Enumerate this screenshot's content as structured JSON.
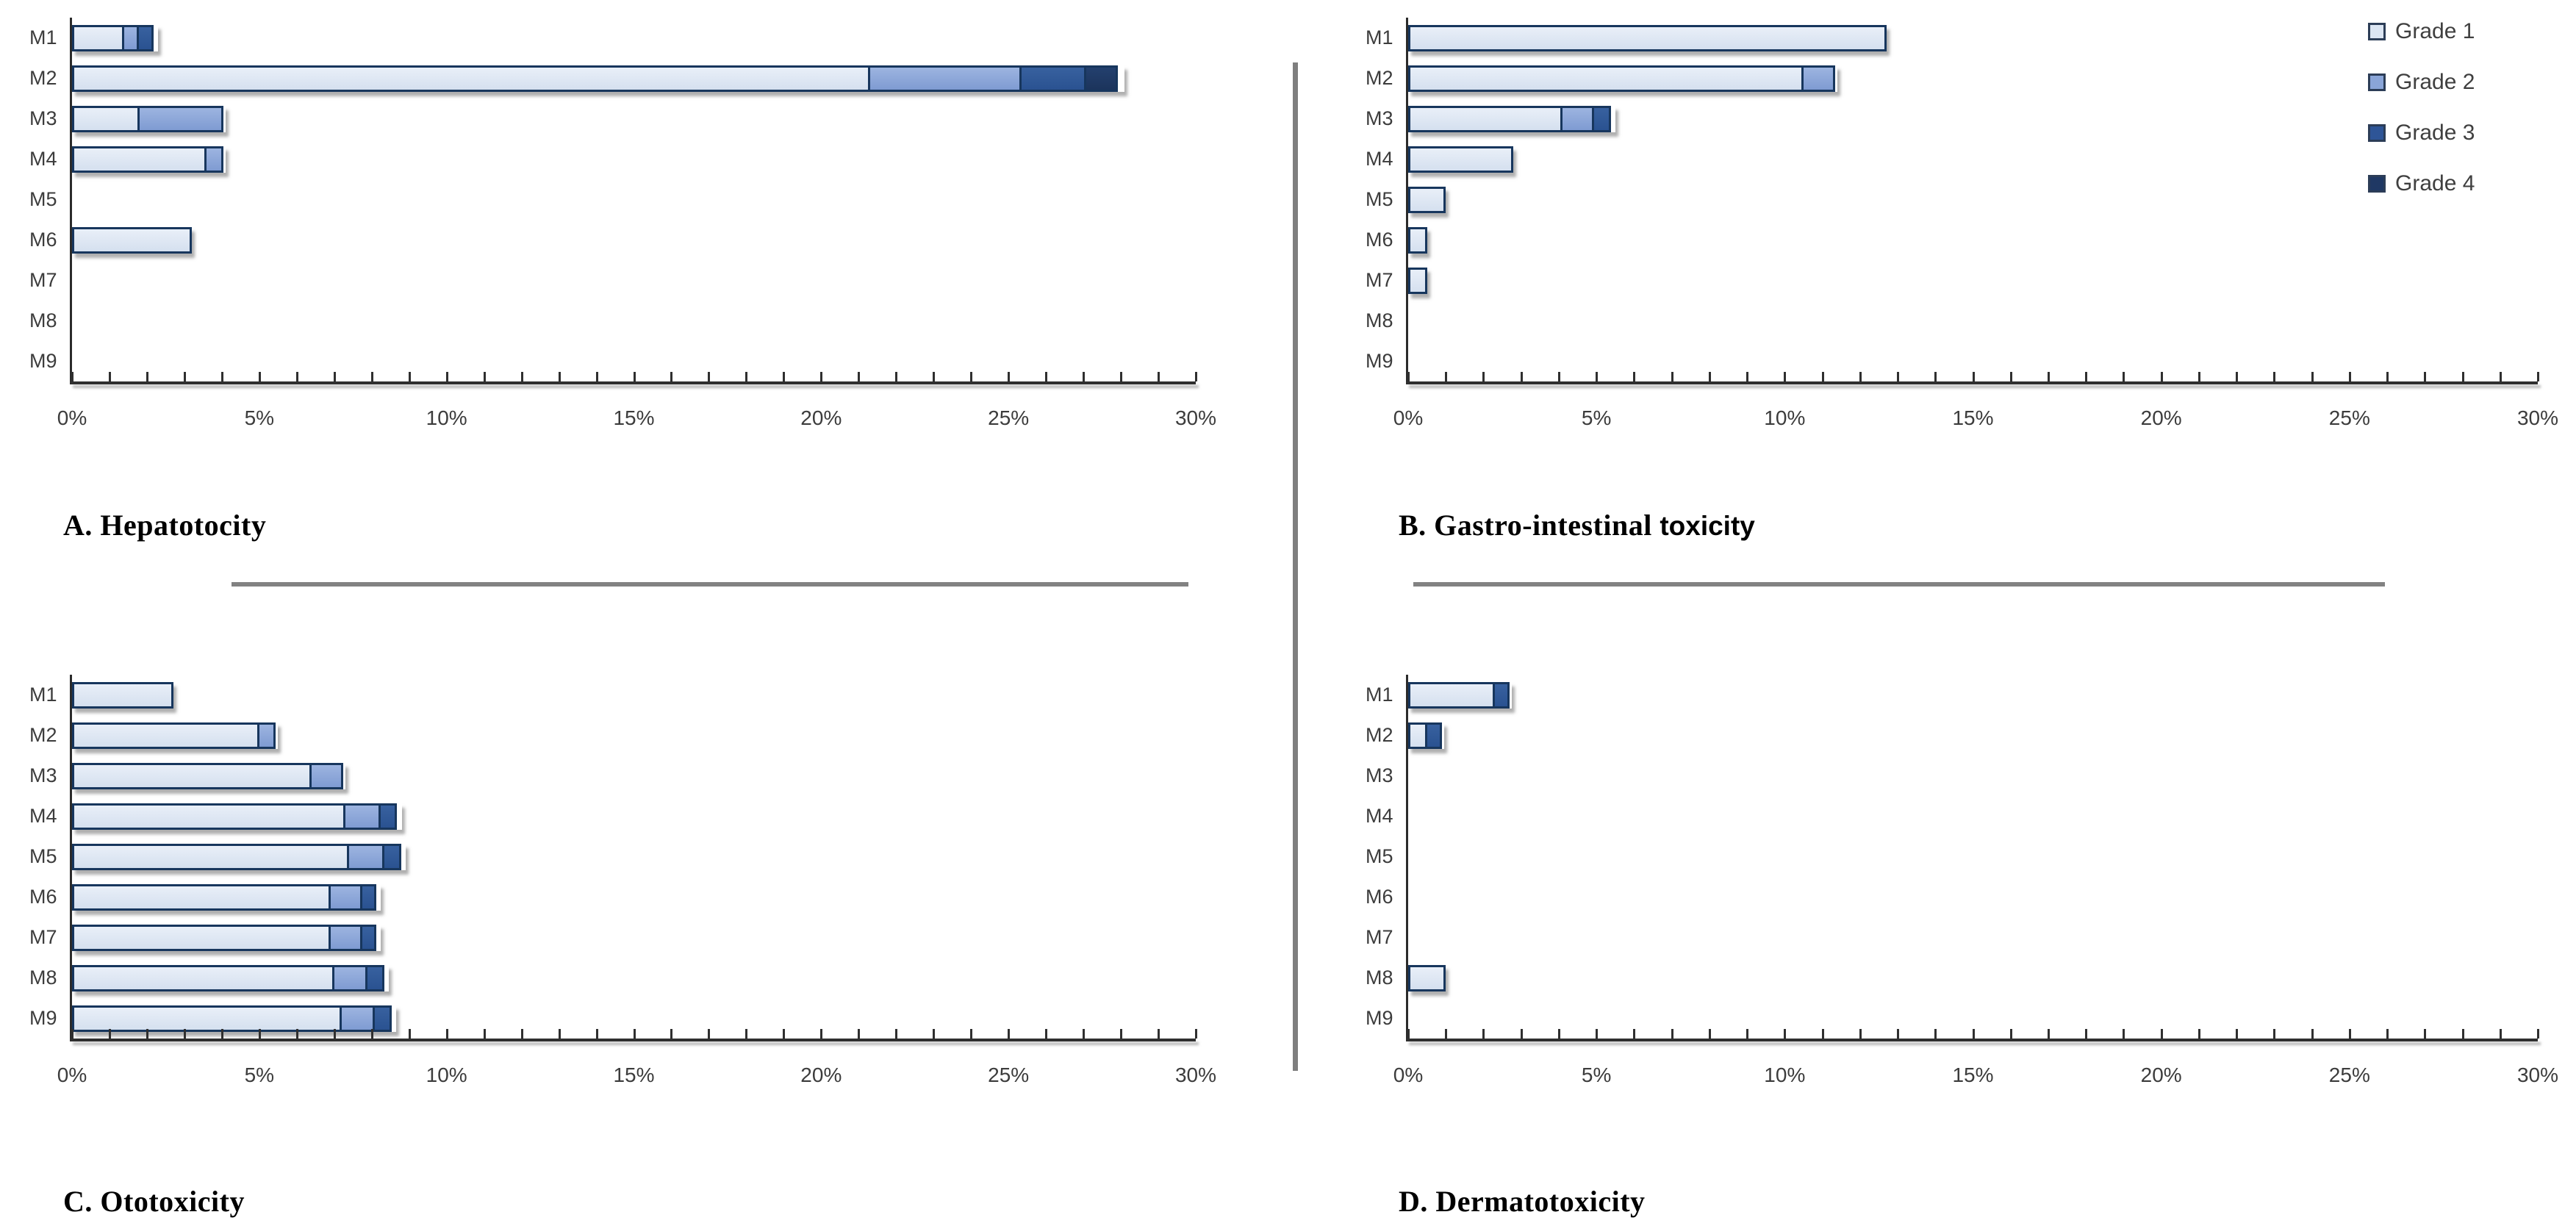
{
  "figure": {
    "background": "#ffffff",
    "divider_color": "#7f7f7f",
    "separator_color": "#828282",
    "axis_color": "#2f2f2f",
    "bar_border_color": "#17365d",
    "text_color": "#3c3c3c"
  },
  "axis": {
    "min": 0,
    "max": 30,
    "minor_step": 1,
    "major_step": 5,
    "tick_labels": [
      "0%",
      "5%",
      "10%",
      "15%",
      "20%",
      "25%",
      "30%"
    ]
  },
  "legend": {
    "position": "top-right",
    "items": [
      {
        "label": "Grade 1",
        "color": "#dbe5f2",
        "css_class": "g1"
      },
      {
        "label": "Grade 2",
        "color": "#8aa5d8",
        "css_class": "g2"
      },
      {
        "label": "Grade 3",
        "color": "#2e5597",
        "css_class": "g3"
      },
      {
        "label": "Grade 4",
        "color": "#1f3864",
        "css_class": "g4"
      }
    ]
  },
  "chart_data": [
    {
      "panel": "A",
      "type": "bar",
      "orientation": "horizontal",
      "stacked": true,
      "title": "A. Hepatotocity",
      "categories": [
        "M1",
        "M2",
        "M3",
        "M4",
        "M5",
        "M6",
        "M7",
        "M8",
        "M9"
      ],
      "xlim": [
        0,
        30
      ],
      "xticklabels": [
        "0%",
        "5%",
        "10%",
        "15%",
        "20%",
        "25%",
        "30%"
      ],
      "series": [
        {
          "name": "Grade 1",
          "values": [
            1.4,
            21.3,
            1.8,
            3.6,
            0,
            3.2,
            0,
            0,
            0
          ]
        },
        {
          "name": "Grade 2",
          "values": [
            0.45,
            4.1,
            2.3,
            0.5,
            0,
            0,
            0,
            0,
            0
          ]
        },
        {
          "name": "Grade 3",
          "values": [
            0.45,
            1.8,
            0,
            0,
            0,
            0,
            0,
            0,
            0
          ]
        },
        {
          "name": "Grade 4",
          "values": [
            0,
            0.9,
            0,
            0,
            0,
            0,
            0,
            0,
            0
          ]
        }
      ]
    },
    {
      "panel": "B",
      "type": "bar",
      "orientation": "horizontal",
      "stacked": true,
      "title": "B. Gastro-intestinal toxicity",
      "title_parts": {
        "serif": "B. Gastro-intestinal ",
        "sans": "toxicity"
      },
      "categories": [
        "M1",
        "M2",
        "M3",
        "M4",
        "M5",
        "M6",
        "M7",
        "M8",
        "M9"
      ],
      "xlim": [
        0,
        30
      ],
      "xticklabels": [
        "0%",
        "5%",
        "10%",
        "15%",
        "20%",
        "25%",
        "30%"
      ],
      "series": [
        {
          "name": "Grade 1",
          "values": [
            12.7,
            10.5,
            4.1,
            2.8,
            1.0,
            0.5,
            0.5,
            0,
            0
          ]
        },
        {
          "name": "Grade 2",
          "values": [
            0,
            0.9,
            0.9,
            0,
            0,
            0,
            0,
            0,
            0
          ]
        },
        {
          "name": "Grade 3",
          "values": [
            0,
            0,
            0.5,
            0,
            0,
            0,
            0,
            0,
            0
          ]
        },
        {
          "name": "Grade 4",
          "values": [
            0,
            0,
            0,
            0,
            0,
            0,
            0,
            0,
            0
          ]
        }
      ]
    },
    {
      "panel": "C",
      "type": "bar",
      "orientation": "horizontal",
      "stacked": true,
      "title": "C. Ototoxicity",
      "categories": [
        "M1",
        "M2",
        "M3",
        "M4",
        "M5",
        "M6",
        "M7",
        "M8",
        "M9"
      ],
      "xlim": [
        0,
        30
      ],
      "xticklabels": [
        "0%",
        "5%",
        "10%",
        "15%",
        "20%",
        "25%",
        "30%"
      ],
      "series": [
        {
          "name": "Grade 1",
          "values": [
            2.7,
            5.0,
            6.4,
            7.3,
            7.4,
            6.9,
            6.9,
            7.0,
            7.2
          ]
        },
        {
          "name": "Grade 2",
          "values": [
            0,
            0.5,
            0.9,
            1.0,
            1.0,
            0.9,
            0.9,
            0.95,
            0.95
          ]
        },
        {
          "name": "Grade 3",
          "values": [
            0,
            0,
            0,
            0.5,
            0.5,
            0.45,
            0.45,
            0.5,
            0.5
          ]
        },
        {
          "name": "Grade 4",
          "values": [
            0,
            0,
            0,
            0,
            0,
            0,
            0,
            0,
            0
          ]
        }
      ]
    },
    {
      "panel": "D",
      "type": "bar",
      "orientation": "horizontal",
      "stacked": true,
      "title": "D. Dermatotoxicity",
      "categories": [
        "M1",
        "M2",
        "M3",
        "M4",
        "M5",
        "M6",
        "M7",
        "M8",
        "M9"
      ],
      "xlim": [
        0,
        30
      ],
      "xticklabels": [
        "0%",
        "5%",
        "10%",
        "15%",
        "20%",
        "25%",
        "30%"
      ],
      "series": [
        {
          "name": "Grade 1",
          "values": [
            2.3,
            0.5,
            0,
            0,
            0,
            0,
            0,
            1.0,
            0
          ]
        },
        {
          "name": "Grade 2",
          "values": [
            0,
            0,
            0,
            0,
            0,
            0,
            0,
            0,
            0
          ]
        },
        {
          "name": "Grade 3",
          "values": [
            0.45,
            0.45,
            0,
            0,
            0,
            0,
            0,
            0,
            0
          ]
        },
        {
          "name": "Grade 4",
          "values": [
            0,
            0,
            0,
            0,
            0,
            0,
            0,
            0,
            0
          ]
        }
      ]
    }
  ]
}
